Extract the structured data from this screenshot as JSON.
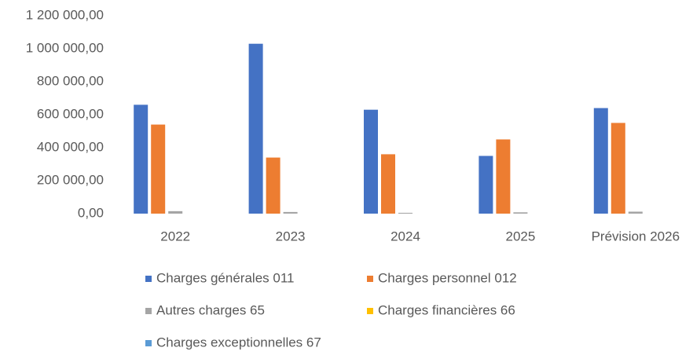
{
  "chart_data": {
    "type": "bar",
    "categories": [
      "2022",
      "2023",
      "2024",
      "2025",
      "Prévision 2026"
    ],
    "series": [
      {
        "name": "Charges générales 011",
        "color": "#4472c4",
        "values": [
          660000,
          1030000,
          630000,
          350000,
          640000
        ]
      },
      {
        "name": "Charges personnel 012",
        "color": "#ed7d31",
        "values": [
          540000,
          340000,
          360000,
          450000,
          550000
        ]
      },
      {
        "name": "Autres charges 65",
        "color": "#a5a5a5",
        "values": [
          15000,
          10000,
          5000,
          8000,
          12000
        ]
      },
      {
        "name": "Charges financières 66",
        "color": "#ffc000",
        "values": [
          0,
          0,
          0,
          0,
          0
        ]
      },
      {
        "name": "Charges exceptionnelles 67",
        "color": "#5b9bd5",
        "values": [
          0,
          0,
          0,
          0,
          0
        ]
      }
    ],
    "ylim": [
      0,
      1200000
    ],
    "yticks": [
      {
        "value": 0,
        "label": "0,00"
      },
      {
        "value": 200000,
        "label": "200 000,00"
      },
      {
        "value": 400000,
        "label": "400 000,00"
      },
      {
        "value": 600000,
        "label": "600 000,00"
      },
      {
        "value": 800000,
        "label": "800 000,00"
      },
      {
        "value": 1000000,
        "label": "1 000 000,00"
      },
      {
        "value": 1200000,
        "label": "1 200 000,00"
      }
    ],
    "grid": false
  }
}
